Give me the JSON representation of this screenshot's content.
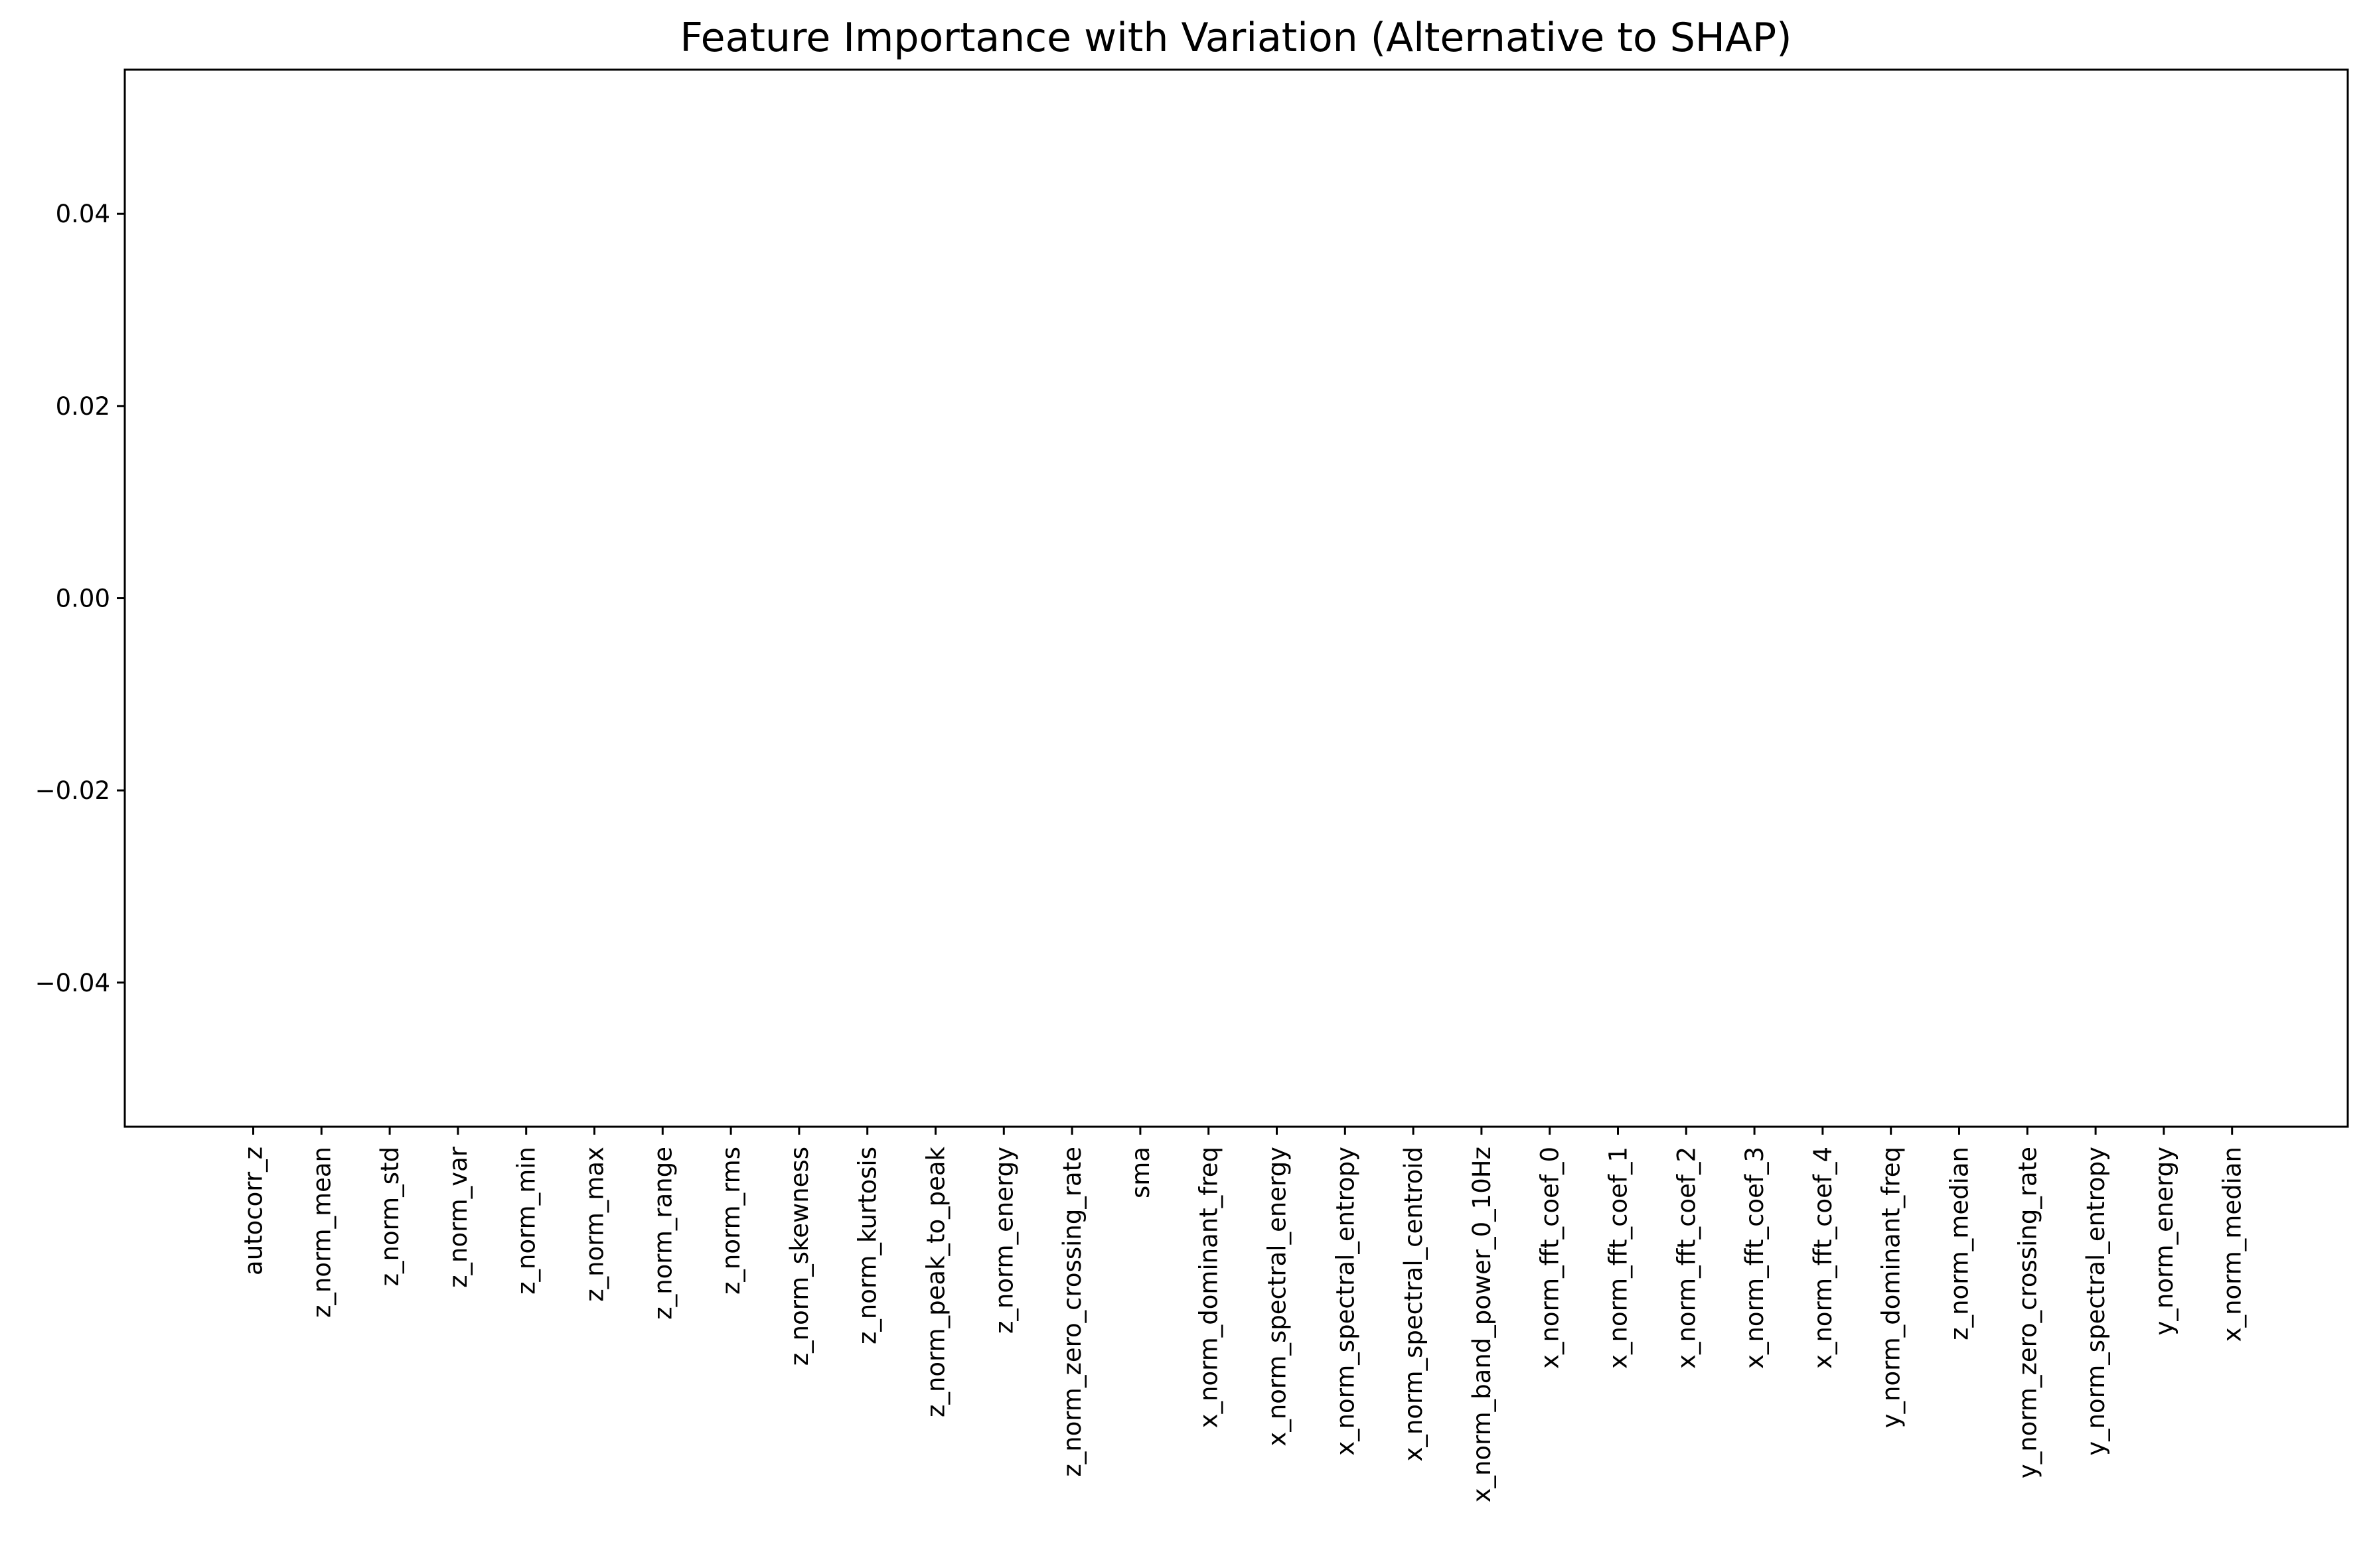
{
  "chart_data": {
    "type": "bar",
    "title": "Feature Importance with Variation (Alternative to SHAP)",
    "xlabel": "",
    "ylabel": "",
    "ylim": [
      -0.055,
      0.055
    ],
    "yticks": [
      0.04,
      0.02,
      0.0,
      -0.02,
      -0.04
    ],
    "ytick_labels": [
      "0.04",
      "0.02",
      "0.00",
      "−0.02",
      "−0.04"
    ],
    "grid": false,
    "categories": [
      "autocorr_z",
      "z_norm_mean",
      "z_norm_std",
      "z_norm_var",
      "z_norm_min",
      "z_norm_max",
      "z_norm_range",
      "z_norm_rms",
      "z_norm_skewness",
      "z_norm_kurtosis",
      "z_norm_peak_to_peak",
      "z_norm_energy",
      "z_norm_zero_crossing_rate",
      "sma",
      "x_norm_dominant_freq",
      "x_norm_spectral_energy",
      "x_norm_spectral_entropy",
      "x_norm_spectral_centroid",
      "x_norm_band_power_0_10Hz",
      "x_norm_fft_coef_0",
      "x_norm_fft_coef_1",
      "x_norm_fft_coef_2",
      "x_norm_fft_coef_3",
      "x_norm_fft_coef_4",
      "y_norm_dominant_freq",
      "z_norm_median",
      "y_norm_zero_crossing_rate",
      "y_norm_spectral_entropy",
      "y_norm_energy",
      "x_norm_median"
    ],
    "values": [
      0,
      0,
      0,
      0,
      0,
      0,
      0,
      0,
      0,
      0,
      0,
      0,
      0,
      0,
      0,
      0,
      0,
      0,
      0,
      0,
      0,
      0,
      0,
      0,
      0,
      0,
      0,
      0,
      0,
      0
    ]
  }
}
